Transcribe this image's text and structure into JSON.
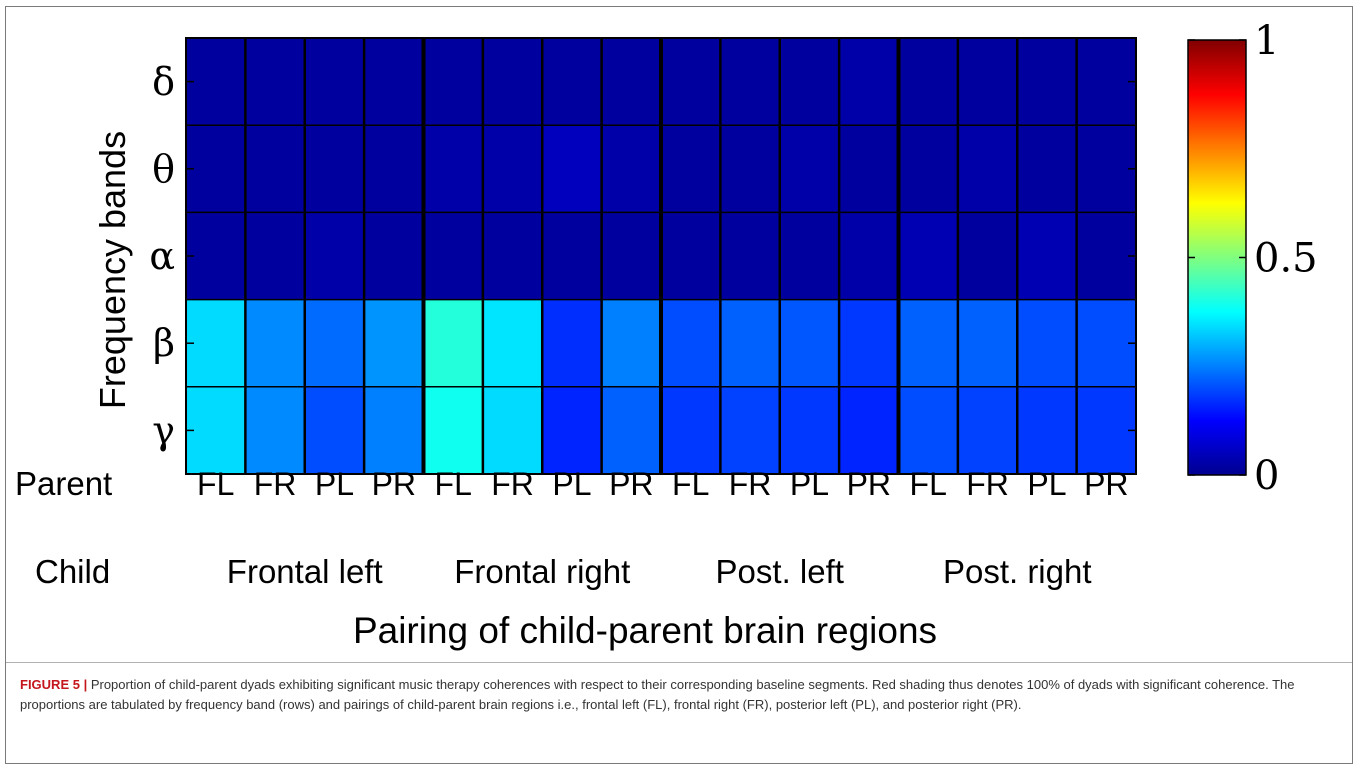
{
  "chart_data": {
    "type": "heatmap",
    "ylabel": "Frequency bands",
    "xlabel": "Pairing of child-parent brain regions",
    "rows": [
      "δ",
      "θ",
      "α",
      "β",
      "γ"
    ],
    "parent_label": "Parent",
    "child_label": "Child",
    "parent_regions": [
      "FL",
      "FR",
      "PL",
      "PR",
      "FL",
      "FR",
      "PL",
      "PR",
      "FL",
      "FR",
      "PL",
      "PR",
      "FL",
      "FR",
      "PL",
      "PR"
    ],
    "child_groups": [
      "Frontal left",
      "Frontal right",
      "Post. left",
      "Post. right"
    ],
    "colorbar": {
      "min": 0,
      "max": 1,
      "ticks": [
        "0",
        "0.5",
        "1"
      ],
      "colormap": "jet"
    },
    "values": [
      [
        0.03,
        0.03,
        0.03,
        0.03,
        0.03,
        0.03,
        0.03,
        0.03,
        0.03,
        0.03,
        0.03,
        0.04,
        0.03,
        0.03,
        0.03,
        0.03
      ],
      [
        0.03,
        0.03,
        0.03,
        0.03,
        0.04,
        0.04,
        0.06,
        0.04,
        0.03,
        0.03,
        0.04,
        0.03,
        0.03,
        0.04,
        0.03,
        0.03
      ],
      [
        0.03,
        0.03,
        0.04,
        0.03,
        0.03,
        0.03,
        0.03,
        0.03,
        0.03,
        0.03,
        0.03,
        0.04,
        0.05,
        0.03,
        0.05,
        0.03
      ],
      [
        0.34,
        0.26,
        0.23,
        0.27,
        0.41,
        0.35,
        0.17,
        0.25,
        0.2,
        0.22,
        0.21,
        0.18,
        0.22,
        0.22,
        0.2,
        0.2
      ],
      [
        0.34,
        0.26,
        0.2,
        0.25,
        0.39,
        0.34,
        0.16,
        0.22,
        0.18,
        0.19,
        0.18,
        0.16,
        0.2,
        0.19,
        0.18,
        0.18
      ]
    ]
  },
  "caption": {
    "lead": "FIGURE 5 |",
    "text": " Proportion of child-parent dyads exhibiting significant music therapy coherences with respect to their corresponding baseline segments. Red shading thus denotes 100% of dyads with significant coherence. The proportions are tabulated by frequency band (rows) and pairings of child-parent brain regions i.e., frontal left (FL), frontal right (FR), posterior left (PL), and posterior right (PR)."
  }
}
